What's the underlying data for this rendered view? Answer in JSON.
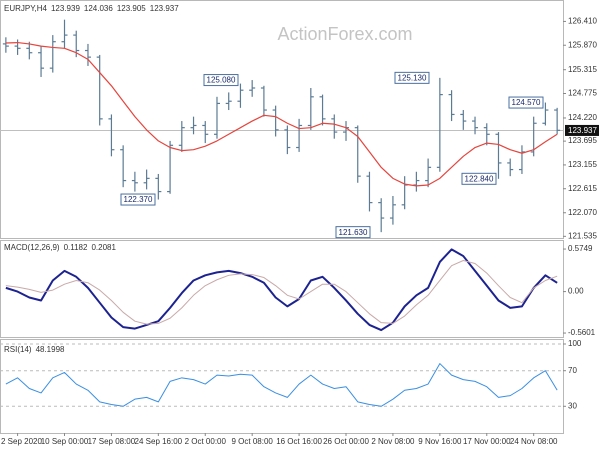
{
  "watermark": "ActionForex.com",
  "chart_data": [
    {
      "type": "ohlc",
      "symbol": "EURJPY,H4",
      "header_values": [
        123.939,
        124.036,
        123.905,
        123.937
      ],
      "color": "#5b7b95",
      "open": [
        125.9,
        125.85,
        125.8,
        125.7,
        125.35,
        125.95,
        126.1,
        125.75,
        125.6,
        124.2,
        123.5,
        122.8,
        122.75,
        122.85,
        122.55,
        123.6,
        124.0,
        124.05,
        123.85,
        124.55,
        124.6,
        124.85,
        124.9,
        124.4,
        123.95,
        123.55,
        124.05,
        124.7,
        124.2,
        123.9,
        124.0,
        122.9,
        122.3,
        121.95,
        122.25,
        122.7,
        122.8,
        123.1,
        124.75,
        124.3,
        124.15,
        124.0,
        123.85,
        123.2,
        123.05,
        123.45,
        124.1,
        124.4
      ],
      "high": [
        126.05,
        126.0,
        125.95,
        125.85,
        126.1,
        126.45,
        126.2,
        125.9,
        125.65,
        124.3,
        123.6,
        123.0,
        123.05,
        122.95,
        123.7,
        124.15,
        124.25,
        124.15,
        124.7,
        124.8,
        125.0,
        125.08,
        124.95,
        124.5,
        124.05,
        124.2,
        124.9,
        124.75,
        124.3,
        124.15,
        124.05,
        123.0,
        122.4,
        122.45,
        122.9,
        123.0,
        123.3,
        125.13,
        124.85,
        124.4,
        124.25,
        124.1,
        123.9,
        123.3,
        123.6,
        124.25,
        124.57,
        124.45
      ],
      "low": [
        125.7,
        125.65,
        125.55,
        125.15,
        125.25,
        125.8,
        125.6,
        125.4,
        124.05,
        123.35,
        122.65,
        122.55,
        122.6,
        122.37,
        122.5,
        123.45,
        123.85,
        123.65,
        123.75,
        124.4,
        124.45,
        124.7,
        124.25,
        123.8,
        123.4,
        123.45,
        123.95,
        124.05,
        123.75,
        123.7,
        122.75,
        122.1,
        121.63,
        121.8,
        122.15,
        122.55,
        122.65,
        123.0,
        124.15,
        123.95,
        123.85,
        123.6,
        122.84,
        122.9,
        122.95,
        123.35,
        124.05,
        123.85
      ],
      "close": [
        125.85,
        125.8,
        125.7,
        125.35,
        125.95,
        126.1,
        125.75,
        125.6,
        124.2,
        123.5,
        122.8,
        122.75,
        122.85,
        122.55,
        123.6,
        124.0,
        124.05,
        123.85,
        124.55,
        124.6,
        124.85,
        124.9,
        124.4,
        123.95,
        123.55,
        124.05,
        124.7,
        124.2,
        123.9,
        124.0,
        122.9,
        122.3,
        121.95,
        122.25,
        122.7,
        122.8,
        123.1,
        124.75,
        124.3,
        124.15,
        124.0,
        123.85,
        123.2,
        123.05,
        123.45,
        124.1,
        124.4,
        123.94
      ],
      "overlay": {
        "color": "#e5453d",
        "values": [
          125.92,
          125.93,
          125.9,
          125.85,
          125.82,
          125.8,
          125.7,
          125.55,
          125.25,
          124.95,
          124.6,
          124.25,
          123.95,
          123.7,
          123.55,
          123.48,
          123.5,
          123.58,
          123.7,
          123.85,
          124.0,
          124.15,
          124.28,
          124.25,
          124.1,
          123.98,
          124.0,
          124.1,
          124.08,
          124.0,
          123.8,
          123.45,
          123.1,
          122.85,
          122.72,
          122.68,
          122.7,
          122.85,
          123.1,
          123.35,
          123.55,
          123.65,
          123.62,
          123.5,
          123.42,
          123.5,
          123.68,
          123.85
        ]
      },
      "ylim": [
        121.52,
        126.76
      ],
      "yticks": [
        {
          "value": 126.41,
          "label": "126.410"
        },
        {
          "value": 125.87,
          "label": "125.870"
        },
        125.315,
        124.775,
        {
          "value": 124.22,
          "label": "124.220"
        },
        123.695,
        123.155,
        122.615,
        {
          "value": 122.07,
          "label": "122.070"
        },
        121.535
      ],
      "last_price": 123.937,
      "annotations": [
        {
          "value": 125.08,
          "label": "125.080"
        },
        {
          "value": 122.37,
          "label": "122.370"
        },
        {
          "value": 125.13,
          "label": "125.130"
        },
        {
          "value": 121.63,
          "label": "121.630"
        },
        {
          "value": 124.57,
          "label": "124.570"
        },
        {
          "value": 122.84,
          "label": "122.840"
        }
      ]
    },
    {
      "type": "line",
      "label": "MACD(12,26,9)",
      "header_values": [
        0.1182,
        0.2081
      ],
      "series": [
        {
          "color": "#1c2290",
          "values": [
            0.05,
            0.0,
            -0.08,
            -0.12,
            0.15,
            0.28,
            0.2,
            0.05,
            -0.15,
            -0.35,
            -0.48,
            -0.5,
            -0.45,
            -0.4,
            -0.22,
            -0.02,
            0.15,
            0.22,
            0.26,
            0.28,
            0.25,
            0.2,
            0.12,
            -0.08,
            -0.2,
            -0.1,
            0.15,
            0.2,
            0.05,
            -0.12,
            -0.3,
            -0.45,
            -0.52,
            -0.42,
            -0.2,
            -0.05,
            0.05,
            0.4,
            0.57,
            0.48,
            0.28,
            0.08,
            -0.12,
            -0.22,
            -0.2,
            0.05,
            0.22,
            0.1182
          ]
        },
        {
          "color": "#c9a9a9",
          "values": [
            0.08,
            0.06,
            0.03,
            -0.01,
            0.02,
            0.1,
            0.15,
            0.12,
            0.02,
            -0.12,
            -0.28,
            -0.4,
            -0.44,
            -0.43,
            -0.36,
            -0.22,
            -0.05,
            0.08,
            0.16,
            0.22,
            0.24,
            0.23,
            0.19,
            0.08,
            -0.05,
            -0.1,
            0.0,
            0.1,
            0.1,
            0.0,
            -0.15,
            -0.3,
            -0.42,
            -0.43,
            -0.33,
            -0.18,
            -0.05,
            0.15,
            0.35,
            0.42,
            0.38,
            0.25,
            0.08,
            -0.08,
            -0.15,
            0.05,
            0.15,
            0.2081
          ]
        }
      ],
      "ylim": [
        -0.6,
        0.67
      ],
      "yticks": [
        0.5749,
        {
          "value": 0,
          "label": "0.00"
        },
        -0.5601
      ]
    },
    {
      "type": "line",
      "label": "RSI(14)",
      "header_values": [
        48.1998
      ],
      "series": [
        {
          "color": "#3a8fe3",
          "values": [
            55,
            62,
            50,
            45,
            62,
            68,
            55,
            48,
            35,
            32,
            30,
            38,
            40,
            35,
            58,
            62,
            60,
            55,
            65,
            64,
            66,
            65,
            52,
            45,
            40,
            55,
            65,
            55,
            50,
            52,
            35,
            32,
            30,
            38,
            48,
            50,
            55,
            78,
            65,
            60,
            58,
            52,
            40,
            42,
            50,
            62,
            70,
            48.1998
          ]
        }
      ],
      "ylim": [
        0,
        100
      ],
      "yticks": [
        30,
        70,
        100
      ],
      "grid": true,
      "categories": [
        null,
        "2 Sep 2020",
        null,
        null,
        null,
        "10 Sep 00:00",
        null,
        null,
        null,
        "17 Sep 08:00",
        null,
        null,
        null,
        "24 Sep 16:00",
        null,
        null,
        null,
        "2 Oct 00:00",
        null,
        null,
        null,
        "9 Oct 08:00",
        null,
        null,
        null,
        "16 Oct 16:00",
        null,
        null,
        null,
        "26 Oct 00:00",
        null,
        null,
        null,
        "2 Nov 08:00",
        null,
        null,
        null,
        "9 Nov 16:00",
        null,
        null,
        null,
        "17 Nov 00:00",
        null,
        null,
        null,
        "24 Nov 08:00",
        null,
        null
      ]
    }
  ]
}
